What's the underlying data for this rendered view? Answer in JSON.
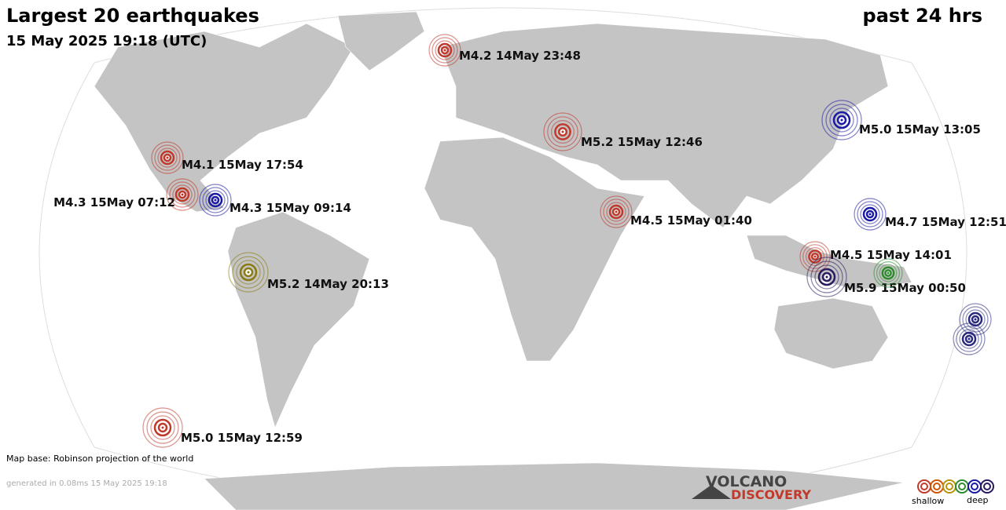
{
  "header": {
    "title": "Largest 20 earthquakes",
    "subtitle": "15 May 2025 19:18 (UTC)",
    "period": "past 24 hrs"
  },
  "quakes": [
    {
      "label": "M4.2 14May 23:48",
      "color": "#c0392b"
    },
    {
      "label": "M5.2 15May 12:46",
      "color": "#c0392b"
    },
    {
      "label": "M5.0 15May 13:05",
      "color": "#1a1aa6"
    },
    {
      "label": "M4.1 15May 17:54",
      "color": "#c0392b"
    },
    {
      "label": "M4.3 15May 07:12",
      "color": "#c0392b"
    },
    {
      "label": "M4.3 15May 09:14",
      "color": "#1a1aa6"
    },
    {
      "label": "M4.5 15May 01:40",
      "color": "#c0392b"
    },
    {
      "label": "M4.7 15May 12:51",
      "color": "#1a1aa6"
    },
    {
      "label": "M5.2 14May 20:13",
      "color": "#8a7a10"
    },
    {
      "label": "M4.5 15May 14:01",
      "color": "#c0392b"
    },
    {
      "label": "M5.9 15May 00:50",
      "color": "#2a1a60"
    },
    {
      "color": "#2e8b2e"
    },
    {
      "color": "#2a2a80"
    },
    {
      "color": "#2a2a80"
    },
    {
      "label": "M5.0 15May 12:59",
      "color": "#c0392b"
    }
  ],
  "footer": {
    "map_base": "Map base: Robinson projection of the world",
    "generated": "generated in 0.08ms 15 May 2025 19:18"
  },
  "logo": {
    "line1": "VOLCANO",
    "line2": "DISCOVERY"
  },
  "legend": {
    "shallow": "shallow",
    "deep": "deep",
    "colors": [
      "#c0392b",
      "#d35400",
      "#b7950b",
      "#2e8b2e",
      "#1a1aa6",
      "#2a1a60"
    ]
  }
}
